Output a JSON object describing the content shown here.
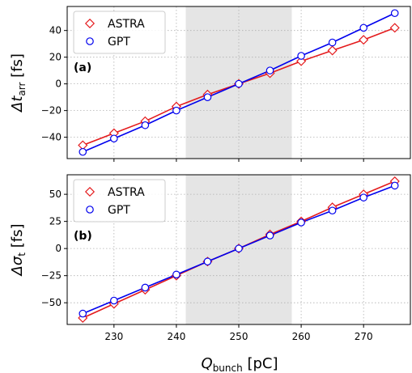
{
  "figure": {
    "xlabel_main": "Q",
    "xlabel_sub": "bunch",
    "xlabel_unit": " [pC]"
  },
  "chart_data": [
    {
      "type": "line",
      "panel_tag": "(a)",
      "ylabel_prefix": "Δt",
      "ylabel_sub": "arr",
      "ylabel_unit": " [fs]",
      "xlim": [
        222.5,
        277.5
      ],
      "ylim": [
        -56,
        58
      ],
      "xticks": [
        230,
        240,
        250,
        260,
        270
      ],
      "yticks": [
        -40,
        -20,
        0,
        20,
        40
      ],
      "ytick_labels": [
        "−40",
        "−20",
        "0",
        "20",
        "40"
      ],
      "shaded_x": [
        241.5,
        258.5
      ],
      "grid": true,
      "legend": "top-left",
      "x": [
        225,
        230,
        235,
        240,
        245,
        250,
        255,
        260,
        265,
        270,
        275
      ],
      "series": [
        {
          "name": "ASTRA",
          "color": "#e41a1c",
          "marker": "diamond",
          "values": [
            -46,
            -37,
            -28,
            -17,
            -8,
            0,
            8,
            17,
            25,
            33,
            42
          ]
        },
        {
          "name": "GPT",
          "color": "#0000ee",
          "marker": "circle",
          "values": [
            -51,
            -41,
            -31,
            -20,
            -10,
            0,
            10,
            21,
            31,
            42,
            53
          ]
        }
      ]
    },
    {
      "type": "line",
      "panel_tag": "(b)",
      "ylabel_prefix": "Δσ",
      "ylabel_sub": "t",
      "ylabel_unit": " [fs]",
      "xlim": [
        222.5,
        277.5
      ],
      "ylim": [
        -70,
        68
      ],
      "xticks": [
        230,
        240,
        250,
        260,
        270
      ],
      "yticks": [
        -50,
        -25,
        0,
        25,
        50
      ],
      "ytick_labels": [
        "−50",
        "−25",
        "0",
        "25",
        "50"
      ],
      "shaded_x": [
        241.5,
        258.5
      ],
      "grid": true,
      "legend": "top-left",
      "x": [
        225,
        230,
        235,
        240,
        245,
        250,
        255,
        260,
        265,
        270,
        275
      ],
      "series": [
        {
          "name": "ASTRA",
          "color": "#e41a1c",
          "marker": "diamond",
          "values": [
            -64,
            -51,
            -38,
            -25,
            -12,
            0,
            13,
            25,
            38,
            50,
            62
          ]
        },
        {
          "name": "GPT",
          "color": "#0000ee",
          "marker": "circle",
          "values": [
            -60,
            -48,
            -36,
            -24,
            -12,
            0,
            12,
            24,
            35,
            47,
            58
          ]
        }
      ]
    }
  ]
}
